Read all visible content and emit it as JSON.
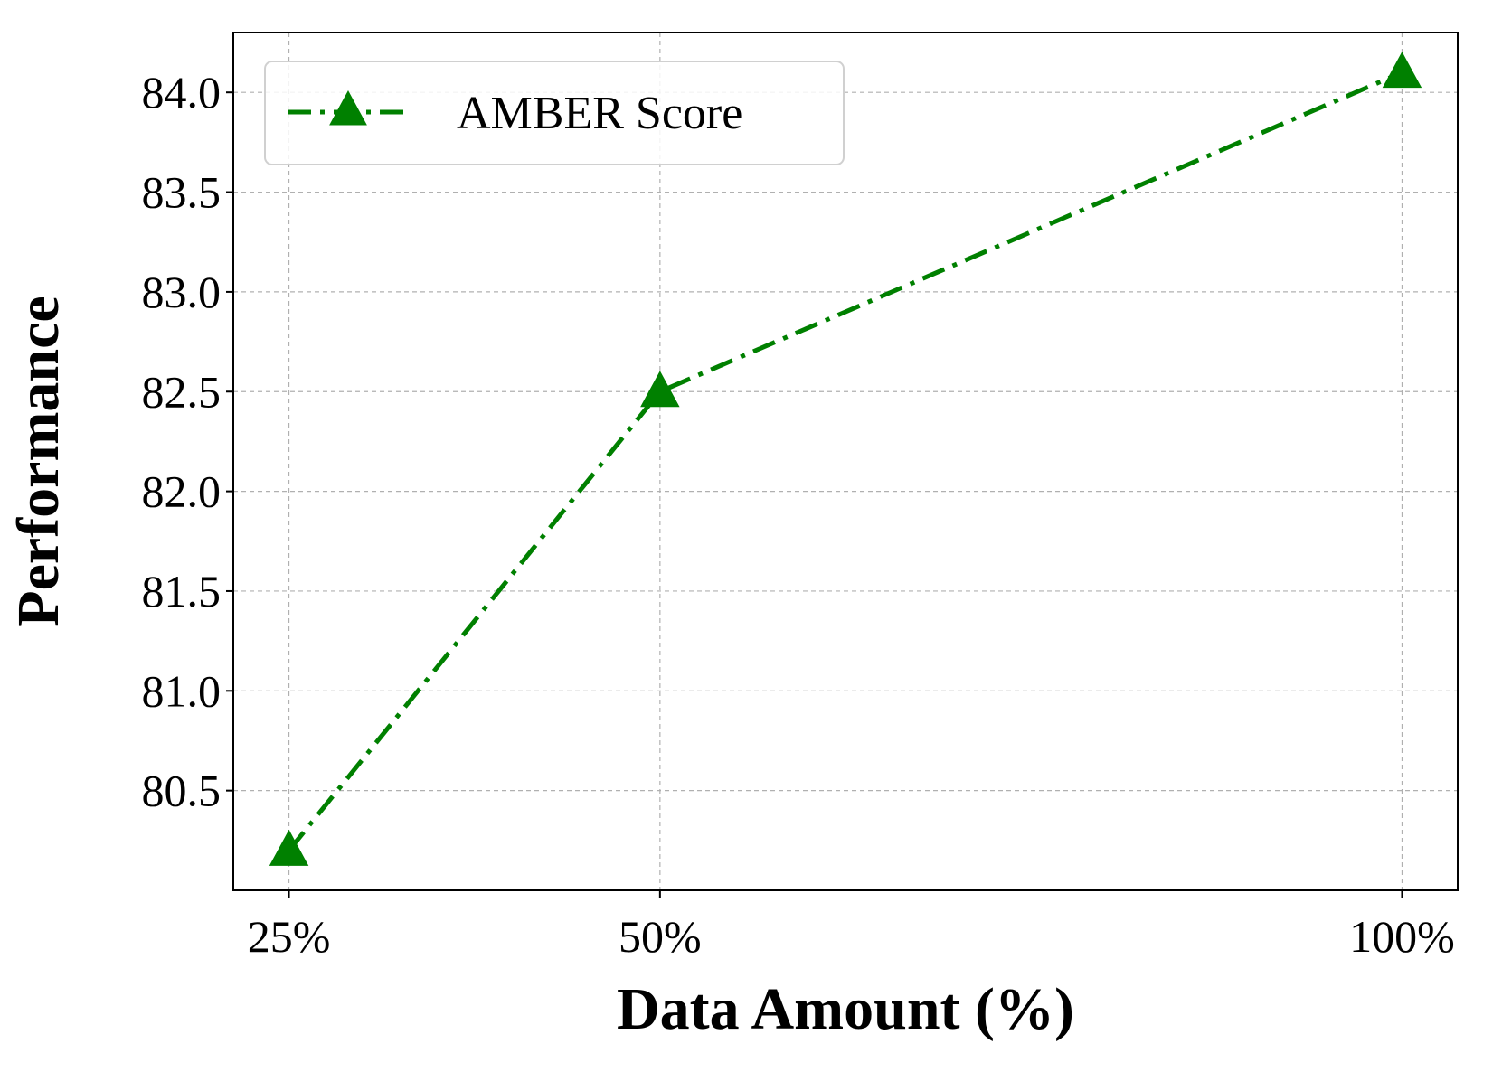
{
  "chart_data": {
    "type": "line",
    "categories": [
      "25%",
      "50%",
      "100%"
    ],
    "x": [
      25,
      50,
      100
    ],
    "series": [
      {
        "name": "AMBER Score",
        "values": [
          80.2,
          82.5,
          84.1
        ],
        "color": "#008000",
        "marker": "triangle-up",
        "line_style": "dash-dot"
      }
    ],
    "title": "",
    "xlabel": "Data Amount (%)",
    "ylabel": "Performance",
    "yticks": [
      80.5,
      81.0,
      81.5,
      82.0,
      82.5,
      83.0,
      83.5,
      84.0
    ],
    "ytick_labels": [
      "80.5",
      "81.0",
      "81.5",
      "82.0",
      "82.5",
      "83.0",
      "83.5",
      "84.0"
    ],
    "ylim": [
      80.0,
      84.3
    ],
    "xlim": [
      21.25,
      103.75
    ],
    "grid": true,
    "legend_position": "upper-left"
  }
}
